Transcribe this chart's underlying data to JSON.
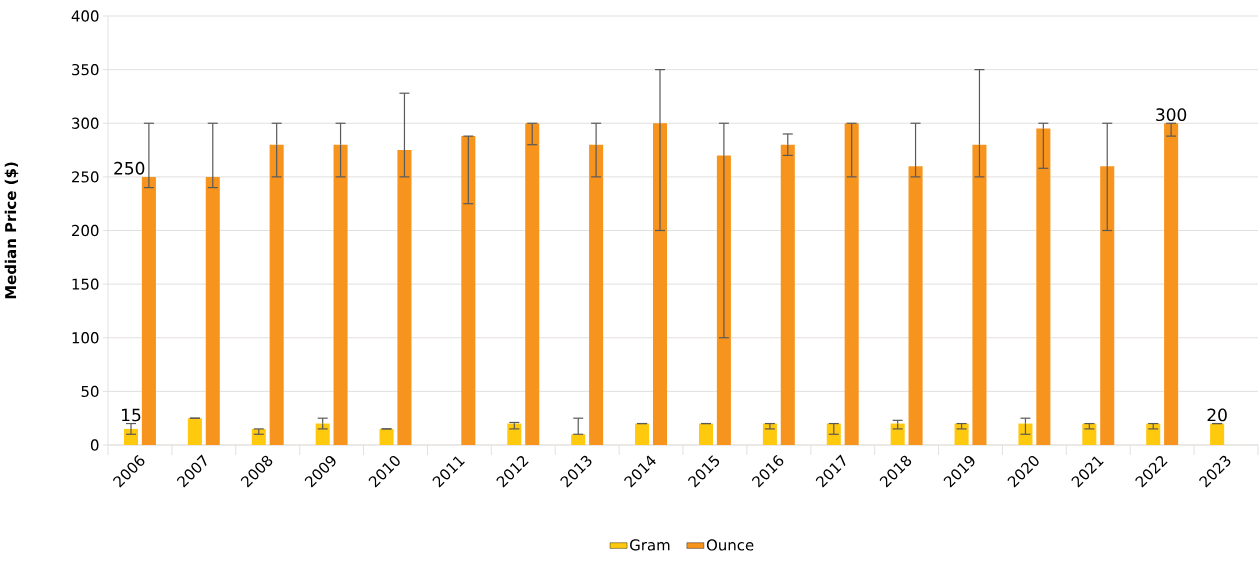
{
  "chart_data": {
    "type": "bar",
    "ylabel": "Median Price ($)",
    "categories": [
      "2006",
      "2007",
      "2008",
      "2009",
      "2010",
      "2011",
      "2012",
      "2013",
      "2014",
      "2015",
      "2016",
      "2017",
      "2018",
      "2019",
      "2020",
      "2021",
      "2022",
      "2023"
    ],
    "series": [
      {
        "name": "Gram",
        "color": "#ffc90e",
        "values": [
          15,
          25,
          15,
          20,
          15,
          null,
          20,
          10,
          20,
          20,
          20,
          20,
          20,
          20,
          20,
          20,
          20,
          20
        ],
        "errors": [
          [
            10,
            20
          ],
          [
            25,
            25
          ],
          [
            10,
            15
          ],
          [
            15,
            25
          ],
          [
            15,
            15
          ],
          null,
          [
            15,
            21
          ],
          [
            10,
            25
          ],
          [
            20,
            20
          ],
          [
            20,
            20
          ],
          [
            15,
            20
          ],
          [
            10,
            20
          ],
          [
            15,
            23
          ],
          [
            15,
            20
          ],
          [
            10,
            25
          ],
          [
            15,
            20
          ],
          [
            15,
            20
          ],
          [
            20,
            20
          ]
        ],
        "value_labels": [
          "15",
          null,
          null,
          null,
          null,
          null,
          null,
          null,
          null,
          null,
          null,
          null,
          null,
          null,
          null,
          null,
          null,
          "20"
        ]
      },
      {
        "name": "Ounce",
        "color": "#f7941d",
        "values": [
          250,
          250,
          280,
          280,
          275,
          288,
          300,
          280,
          300,
          270,
          280,
          300,
          260,
          280,
          295,
          260,
          300,
          null
        ],
        "errors": [
          [
            240,
            300
          ],
          [
            240,
            300
          ],
          [
            250,
            300
          ],
          [
            250,
            300
          ],
          [
            250,
            328
          ],
          [
            225,
            288
          ],
          [
            280,
            300
          ],
          [
            250,
            300
          ],
          [
            200,
            350
          ],
          [
            100,
            300
          ],
          [
            270,
            290
          ],
          [
            250,
            300
          ],
          [
            250,
            300
          ],
          [
            250,
            350
          ],
          [
            258,
            300
          ],
          [
            200,
            300
          ],
          [
            288,
            300
          ],
          null
        ],
        "value_labels": [
          "250",
          null,
          null,
          null,
          null,
          null,
          null,
          null,
          null,
          null,
          null,
          null,
          null,
          null,
          null,
          null,
          "300",
          null
        ]
      }
    ],
    "ylim": [
      0,
      400
    ],
    "yticks": [
      0,
      50,
      100,
      150,
      200,
      250,
      300,
      350,
      400
    ],
    "grid": "y",
    "legend": "bottom"
  }
}
